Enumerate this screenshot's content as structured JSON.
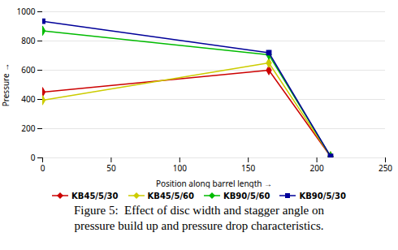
{
  "chart_data": {
    "type": "line",
    "xlabel": "Position along barrel length",
    "ylabel": "Pressure",
    "x": [
      0,
      165,
      210
    ],
    "series": [
      {
        "name": "KB45/5/30",
        "color": "#cc0000",
        "marker": "diamond",
        "values": [
          450,
          600,
          10
        ]
      },
      {
        "name": "KB45/5/60",
        "color": "#cccc00",
        "marker": "diamond",
        "values": [
          395,
          650,
          10
        ]
      },
      {
        "name": "KB90/5/60",
        "color": "#00bb00",
        "marker": "diamond",
        "values": [
          870,
          705,
          10
        ]
      },
      {
        "name": "KB90/5/30",
        "color": "#000099",
        "marker": "square",
        "values": [
          935,
          720,
          10
        ]
      }
    ],
    "xlim": [
      0,
      250
    ],
    "ylim": [
      0,
      1000
    ],
    "xticks": [
      0,
      50,
      100,
      150,
      200,
      250
    ],
    "yticks": [
      0,
      200,
      400,
      600,
      800,
      1000
    ],
    "grid": "y",
    "legend": "bottom",
    "caption": [
      "Figure 5:  Effect of disc width and stagger angle on",
      "pressure build up and pressure drop characteristics."
    ]
  }
}
